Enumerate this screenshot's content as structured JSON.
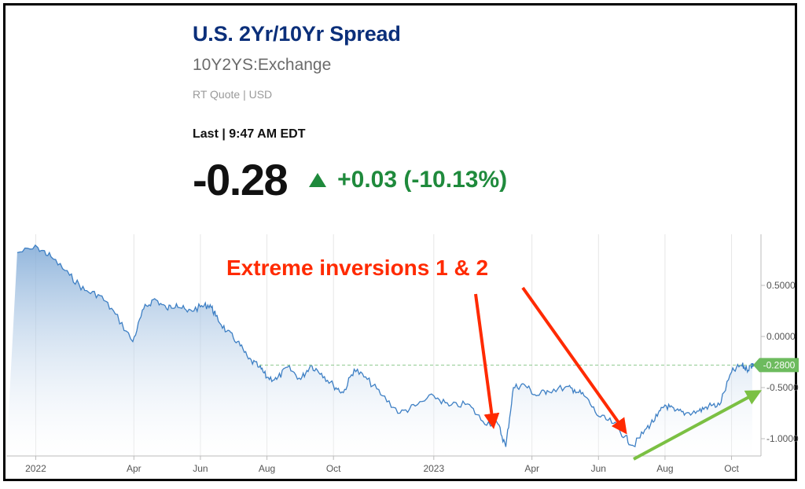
{
  "quote": {
    "title": "U.S. 2Yr/10Yr Spread",
    "symbol": "10Y2YS:Exchange",
    "meta": "RT Quote | USD",
    "last_label": "Last | 9:47 AM EDT",
    "price": "-0.28",
    "change": "+0.03 (-10.13%)",
    "direction_icon": "triangle-up-icon"
  },
  "colors": {
    "title": "#0b2f7a",
    "line": "#3d7fc4",
    "fill_top": "#7fa9d6",
    "positive": "#1f8a3c",
    "annotation_red": "#ff2a00",
    "annotation_green": "#7bc043"
  },
  "chart_data": {
    "type": "area",
    "x_ticks": [
      "2022",
      "Apr",
      "Jun",
      "Aug",
      "Oct",
      "2023",
      "Apr",
      "Jun",
      "Aug",
      "Oct"
    ],
    "y_ticks": [
      "0.5000",
      "0.0000",
      "-0.5000",
      "-1.0000"
    ],
    "ylim": [
      -1.1,
      1.0
    ],
    "series": [
      {
        "x": [
          "2021-12-15",
          "2022-01-03",
          "2022-01-15",
          "2022-02-01",
          "2022-02-15",
          "2022-03-01",
          "2022-03-15",
          "2022-03-31",
          "2022-04-10",
          "2022-04-20",
          "2022-05-01",
          "2022-05-10",
          "2022-05-20",
          "2022-06-01",
          "2022-06-10",
          "2022-06-15",
          "2022-06-25",
          "2022-07-05",
          "2022-07-15",
          "2022-07-25",
          "2022-08-01",
          "2022-08-10",
          "2022-08-20",
          "2022-09-01",
          "2022-09-10",
          "2022-09-20",
          "2022-10-01",
          "2022-10-10",
          "2022-10-20",
          "2022-11-01",
          "2022-11-15",
          "2022-12-01",
          "2022-12-15",
          "2023-01-01",
          "2023-01-15",
          "2023-02-01",
          "2023-02-15",
          "2023-03-01",
          "2023-03-08",
          "2023-03-15",
          "2023-03-25",
          "2023-04-05",
          "2023-04-15",
          "2023-05-01",
          "2023-05-10",
          "2023-05-20",
          "2023-06-01",
          "2023-06-15",
          "2023-06-25",
          "2023-07-03",
          "2023-07-15",
          "2023-07-25",
          "2023-08-01",
          "2023-08-10",
          "2023-08-20",
          "2023-09-01",
          "2023-09-10",
          "2023-09-20",
          "2023-10-01",
          "2023-10-10",
          "2023-10-15",
          "2023-10-20"
        ],
        "y": [
          0.82,
          0.87,
          0.78,
          0.6,
          0.45,
          0.4,
          0.22,
          -0.05,
          0.27,
          0.37,
          0.27,
          0.32,
          0.24,
          0.29,
          0.31,
          0.2,
          0.05,
          -0.05,
          -0.22,
          -0.3,
          -0.4,
          -0.42,
          -0.3,
          -0.42,
          -0.28,
          -0.36,
          -0.48,
          -0.55,
          -0.32,
          -0.42,
          -0.58,
          -0.75,
          -0.68,
          -0.58,
          -0.68,
          -0.66,
          -0.83,
          -0.86,
          -1.08,
          -0.5,
          -0.47,
          -0.58,
          -0.53,
          -0.5,
          -0.52,
          -0.59,
          -0.78,
          -0.85,
          -0.98,
          -1.07,
          -0.9,
          -0.78,
          -0.67,
          -0.73,
          -0.75,
          -0.73,
          -0.68,
          -0.67,
          -0.35,
          -0.28,
          -0.32,
          -0.28
        ]
      }
    ],
    "last_value_label": "-0.2800",
    "annotation": "Extreme inversions 1 & 2"
  }
}
